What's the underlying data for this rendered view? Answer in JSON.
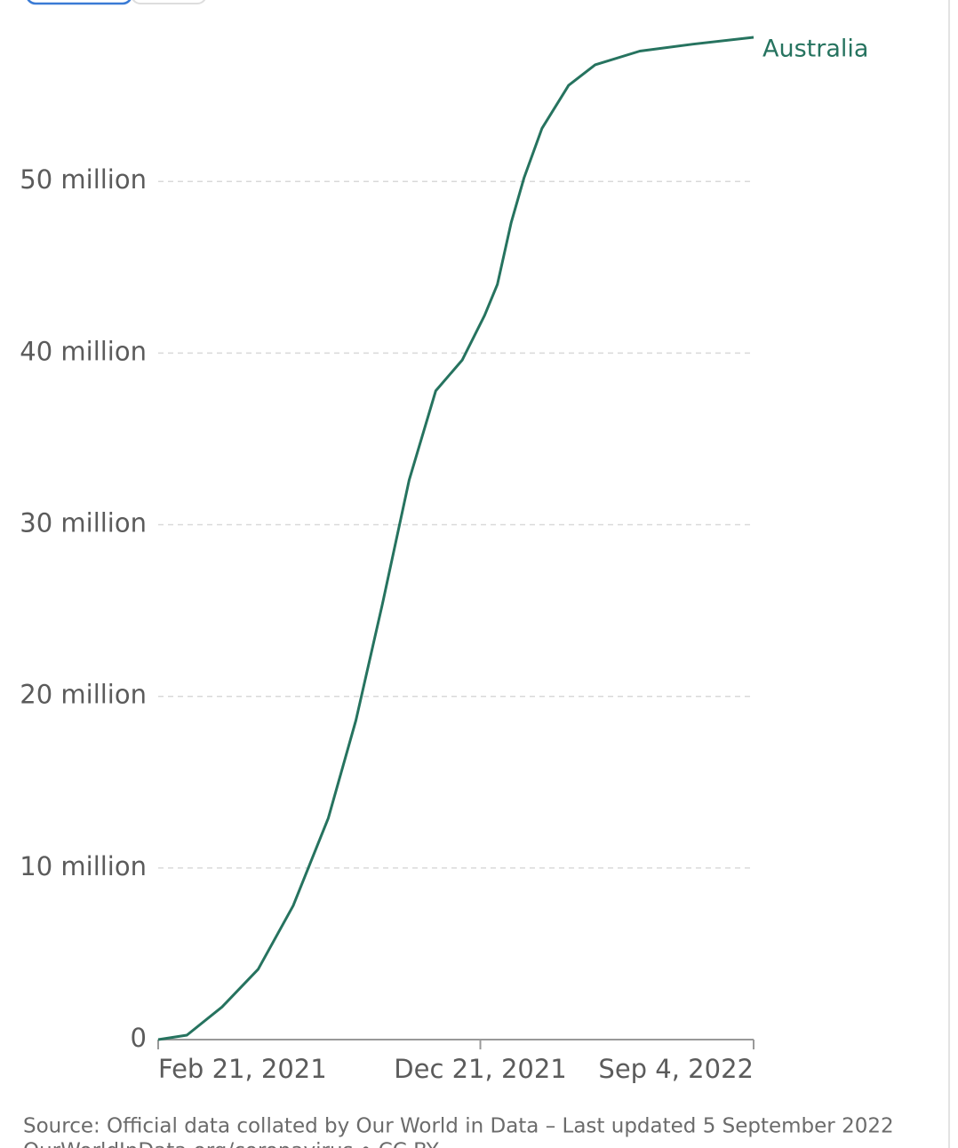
{
  "chart_data": {
    "type": "line",
    "x": [
      "2021-02-21",
      "2021-03-20",
      "2021-04-22",
      "2021-05-26",
      "2021-06-28",
      "2021-07-31",
      "2021-08-26",
      "2021-09-20",
      "2021-10-15",
      "2021-11-09",
      "2021-12-04",
      "2021-12-25",
      "2022-01-06",
      "2022-01-19",
      "2022-01-31",
      "2022-02-17",
      "2022-03-14",
      "2022-04-08",
      "2022-05-20",
      "2022-07-09",
      "2022-09-04"
    ],
    "series": [
      {
        "name": "Australia",
        "color": "#26735f",
        "values": [
          0,
          260000,
          1900000,
          4100000,
          7800000,
          12900000,
          18600000,
          25400000,
          32600000,
          37800000,
          39600000,
          42200000,
          44000000,
          47600000,
          50200000,
          53100000,
          55600000,
          56800000,
          57600000,
          58000000,
          58400000
        ]
      }
    ],
    "xlim": [
      "2021-02-21",
      "2022-09-04"
    ],
    "xticks": [
      {
        "value": "2021-02-21",
        "label": "Feb 21, 2021"
      },
      {
        "value": "2021-12-21",
        "label": "Dec 21, 2021"
      },
      {
        "value": "2022-09-04",
        "label": "Sep 4, 2022"
      }
    ],
    "ylim": [
      0,
      58400000
    ],
    "yticks": [
      0,
      {
        "value": 10000000,
        "label": "10 million"
      },
      {
        "value": 20000000,
        "label": "20 million"
      },
      {
        "value": 30000000,
        "label": "30 million"
      },
      {
        "value": 40000000,
        "label": "40 million"
      },
      {
        "value": 50000000,
        "label": "50 million"
      }
    ],
    "grid": true,
    "source": "Source: Official data collated by Our World in Data – Last updated 5 September 2022",
    "footer": "OurWorldInData.org/coronavirus • CC BY"
  }
}
